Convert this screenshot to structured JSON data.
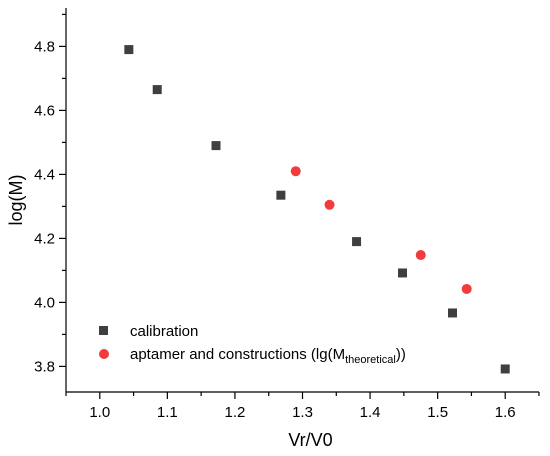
{
  "chart_data": {
    "type": "scatter",
    "xlabel": "Vr/V0",
    "ylabel": "log(M)",
    "xlim": [
      0.95,
      1.65
    ],
    "ylim": [
      3.72,
      4.92
    ],
    "x_ticks": [
      "1.0",
      "1.1",
      "1.2",
      "1.3",
      "1.4",
      "1.5",
      "1.6"
    ],
    "y_ticks": [
      "3.8",
      "4.0",
      "4.2",
      "4.4",
      "4.6",
      "4.8"
    ],
    "legend_position": "bottom-left",
    "series": [
      {
        "name": "calibration",
        "marker": "square",
        "color": "#3f3f3f",
        "x": [
          1.043,
          1.085,
          1.172,
          1.268,
          1.38,
          1.448,
          1.522,
          1.6
        ],
        "y": [
          4.79,
          4.665,
          4.49,
          4.335,
          4.19,
          4.092,
          3.967,
          3.792
        ]
      },
      {
        "name": "aptamer and constructions (lg(M",
        "name_subscript": "theoretical",
        "name_suffix": "))",
        "marker": "circle",
        "color": "#f23c3c",
        "x": [
          1.29,
          1.34,
          1.475,
          1.543
        ],
        "y": [
          4.41,
          4.305,
          4.148,
          4.042
        ]
      }
    ]
  }
}
